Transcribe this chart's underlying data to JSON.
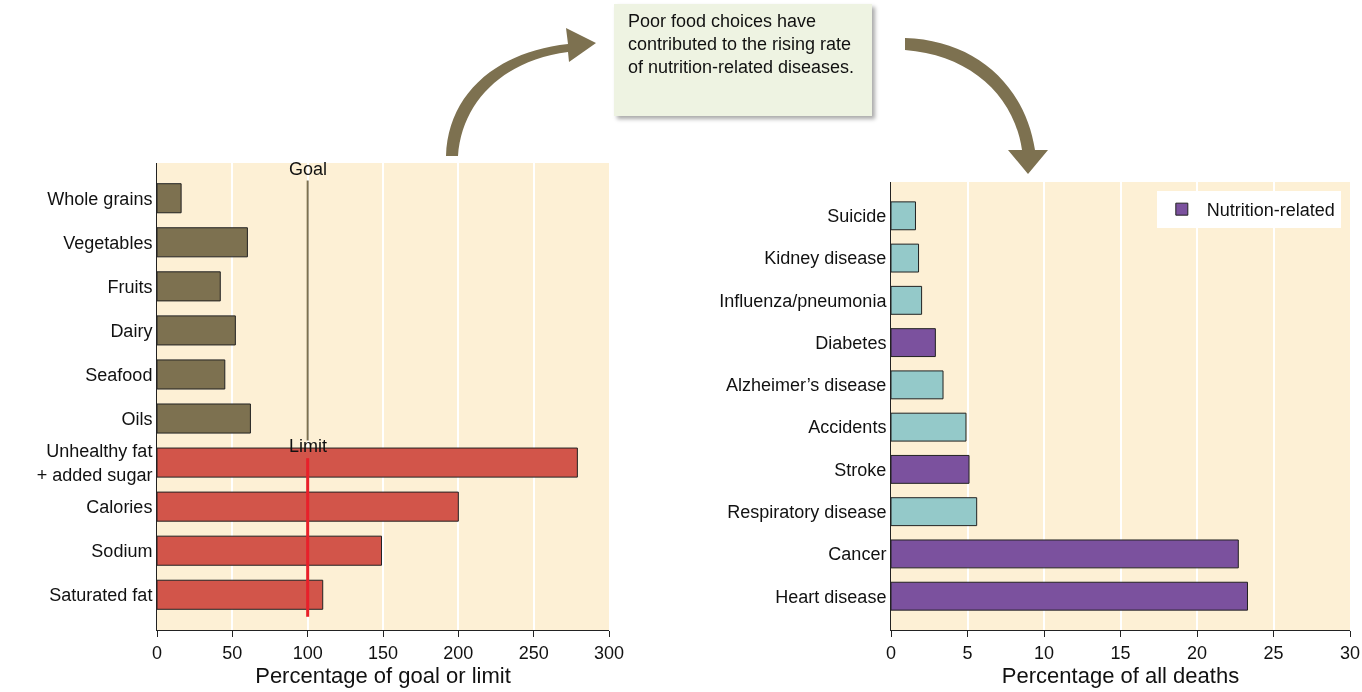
{
  "chart_data": [
    {
      "type": "bar",
      "orientation": "horizontal",
      "xlabel": "Percentage of goal or limit",
      "categories": [
        "Whole grains",
        "Vegetables",
        "Fruits",
        "Dairy",
        "Seafood",
        "Oils",
        "Unhealthy fat\n+ added sugar",
        "Calories",
        "Sodium",
        "Saturated fat"
      ],
      "values": [
        16,
        60,
        42,
        52,
        45,
        62,
        279,
        200,
        149,
        110
      ],
      "colors": [
        "#7d7150",
        "#7d7150",
        "#7d7150",
        "#7d7150",
        "#7d7150",
        "#7d7150",
        "#d2554a",
        "#d2554a",
        "#d2554a",
        "#d2554a"
      ],
      "xlim": [
        0,
        300
      ],
      "xticks": [
        0,
        50,
        100,
        150,
        200,
        250,
        300
      ],
      "grid": "x",
      "ref_lines": [
        {
          "axis": "x",
          "value": 100,
          "label": "Goal",
          "color": "#7d7150"
        },
        {
          "axis": "x",
          "value": 100,
          "label": "Limit",
          "color": "#e8202a"
        }
      ],
      "annotations": [
        "Poor food choices have contributed to the rising rate of nutrition-related diseases."
      ]
    },
    {
      "type": "bar",
      "orientation": "horizontal",
      "xlabel": "Percentage of all deaths",
      "categories": [
        "Suicide",
        "Kidney disease",
        "Influenza/pneumonia",
        "Diabetes",
        "Alzheimer’s disease",
        "Accidents",
        "Stroke",
        "Respiratory disease",
        "Cancer",
        "Heart disease"
      ],
      "series": [
        {
          "name": "Nutrition-related",
          "color": "#7b519e",
          "values": [
            null,
            null,
            null,
            2.9,
            null,
            null,
            5.1,
            null,
            22.7,
            23.3
          ]
        },
        {
          "color": "#94c9c9",
          "values": [
            1.6,
            1.8,
            2.0,
            null,
            3.4,
            4.9,
            null,
            5.6,
            null,
            null
          ]
        }
      ],
      "xlim": [
        0,
        30
      ],
      "xticks": [
        0,
        5,
        10,
        15,
        20,
        25,
        30
      ],
      "grid": "x",
      "legend": "top right"
    }
  ]
}
